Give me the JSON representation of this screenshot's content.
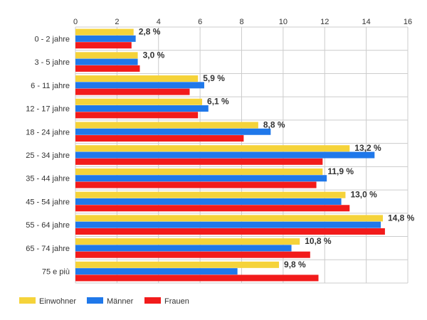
{
  "chart_data": {
    "type": "bar",
    "orientation": "horizontal",
    "categories": [
      "0 - 2 jahre",
      "3 - 5 jahre",
      "6 - 11 jahre",
      "12 - 17 jahre",
      "18 - 24 jahre",
      "25 - 34 jahre",
      "35 - 44 jahre",
      "45 - 54 jahre",
      "55 - 64 jahre",
      "65 - 74 jahre",
      "75 e più"
    ],
    "series": [
      {
        "name": "Einwohner",
        "color": "#f5d33a",
        "values": [
          2.8,
          3.0,
          5.9,
          6.1,
          8.8,
          13.2,
          11.9,
          13.0,
          14.8,
          10.8,
          9.8
        ]
      },
      {
        "name": "Männer",
        "color": "#1f78ea",
        "values": [
          2.9,
          3.0,
          6.2,
          6.4,
          9.4,
          14.4,
          12.1,
          12.8,
          14.7,
          10.4,
          7.8
        ]
      },
      {
        "name": "Frauen",
        "color": "#f21b1b",
        "values": [
          2.7,
          3.1,
          5.5,
          5.9,
          8.1,
          11.9,
          11.6,
          13.2,
          14.9,
          11.3,
          11.7
        ]
      }
    ],
    "data_labels": [
      "2,8 %",
      "3,0 %",
      "5,9 %",
      "6,1 %",
      "8,8 %",
      "13,2 %",
      "11,9 %",
      "13,0 %",
      "14,8 %",
      "10,8 %",
      "9,8 %"
    ],
    "x_ticks": [
      "0",
      "2",
      "4",
      "6",
      "8",
      "10",
      "12",
      "14",
      "16"
    ],
    "xlim": [
      0,
      16
    ],
    "grid": true,
    "legend": "bottom-left"
  }
}
